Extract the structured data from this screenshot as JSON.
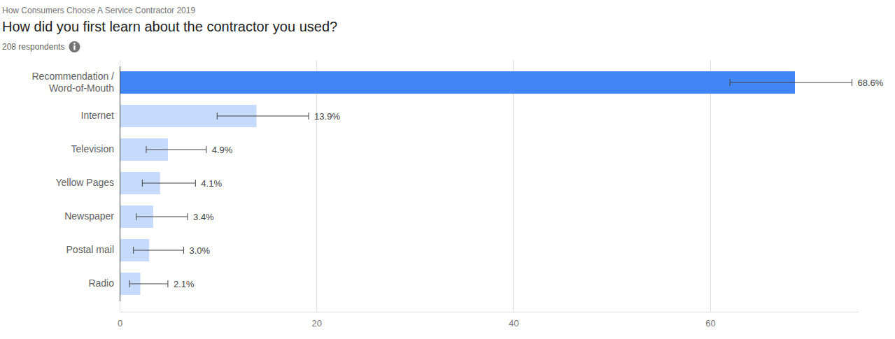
{
  "chart_data": {
    "type": "bar",
    "orientation": "horizontal",
    "subtitle": "How Consumers Choose A Service Contractor 2019",
    "title": "How did you first learn about the contractor you used?",
    "annotations": [
      "208 respondents"
    ],
    "categories": [
      "Recommendation / Word-of-Mouth",
      "Internet",
      "Television",
      "Yellow Pages",
      "Newspaper",
      "Postal mail",
      "Radio"
    ],
    "values": [
      68.6,
      13.9,
      4.9,
      4.1,
      3.4,
      3.0,
      2.1
    ],
    "value_labels": [
      "68.6%",
      "13.9%",
      "4.9%",
      "4.1%",
      "3.4%",
      "3.0%",
      "2.1%"
    ],
    "error_low": [
      62.0,
      9.9,
      2.7,
      2.3,
      1.7,
      1.4,
      1.0
    ],
    "error_high": [
      74.4,
      19.2,
      8.8,
      7.7,
      6.9,
      6.5,
      4.9
    ],
    "colors": [
      "#4285f4",
      "#c6dafc",
      "#c6dafc",
      "#c6dafc",
      "#c6dafc",
      "#c6dafc",
      "#c6dafc"
    ],
    "xlim": [
      0,
      75
    ],
    "xticks": [
      0,
      20,
      40,
      60
    ],
    "grid": true,
    "data_labels": true
  }
}
